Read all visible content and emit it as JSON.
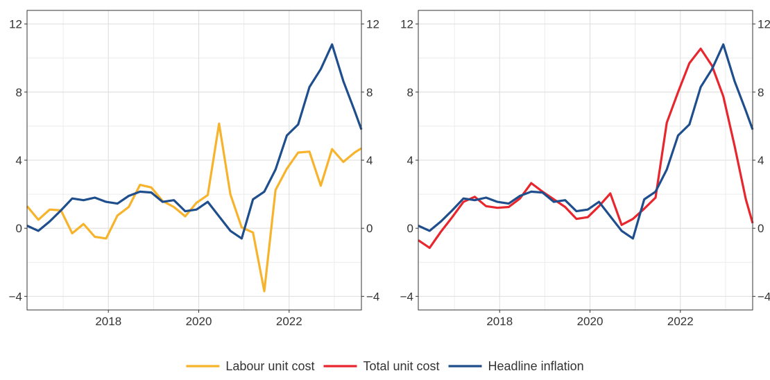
{
  "chart_data": [
    {
      "type": "line",
      "panel": "left",
      "xlim": [
        2016.2,
        2023.6
      ],
      "ylim": [
        -4.8,
        12.8
      ],
      "x_ticks": [
        2018,
        2020,
        2022
      ],
      "x_tick_labels": [
        "2018",
        "2020",
        "2022"
      ],
      "y_ticks": [
        -4,
        0,
        4,
        8,
        12
      ],
      "y_tick_labels": [
        "−4",
        "0",
        "4",
        "8",
        "12"
      ],
      "grid": true,
      "series": [
        {
          "name": "Labour unit cost",
          "color": "#F7B32B",
          "points": [
            [
              2016.2,
              1.3
            ],
            [
              2016.45,
              0.5
            ],
            [
              2016.7,
              1.1
            ],
            [
              2016.95,
              1.05
            ],
            [
              2017.2,
              -0.3
            ],
            [
              2017.45,
              0.25
            ],
            [
              2017.7,
              -0.5
            ],
            [
              2017.95,
              -0.6
            ],
            [
              2018.2,
              0.75
            ],
            [
              2018.45,
              1.25
            ],
            [
              2018.7,
              2.55
            ],
            [
              2018.95,
              2.4
            ],
            [
              2019.2,
              1.6
            ],
            [
              2019.45,
              1.25
            ],
            [
              2019.7,
              0.7
            ],
            [
              2019.95,
              1.5
            ],
            [
              2020.2,
              1.95
            ],
            [
              2020.45,
              6.15
            ],
            [
              2020.7,
              2.0
            ],
            [
              2020.95,
              0.05
            ],
            [
              2021.2,
              -0.25
            ],
            [
              2021.45,
              -3.7
            ],
            [
              2021.7,
              2.25
            ],
            [
              2021.95,
              3.5
            ],
            [
              2022.2,
              4.45
            ],
            [
              2022.45,
              4.5
            ],
            [
              2022.7,
              2.5
            ],
            [
              2022.95,
              4.65
            ],
            [
              2023.2,
              3.9
            ],
            [
              2023.45,
              4.45
            ],
            [
              2023.6,
              4.7
            ]
          ]
        },
        {
          "name": "Headline inflation",
          "color": "#1F4E8C",
          "points": [
            [
              2016.2,
              0.15
            ],
            [
              2016.45,
              -0.15
            ],
            [
              2016.7,
              0.4
            ],
            [
              2016.95,
              1.05
            ],
            [
              2017.2,
              1.75
            ],
            [
              2017.45,
              1.65
            ],
            [
              2017.7,
              1.8
            ],
            [
              2017.95,
              1.55
            ],
            [
              2018.2,
              1.45
            ],
            [
              2018.45,
              1.9
            ],
            [
              2018.7,
              2.15
            ],
            [
              2018.95,
              2.1
            ],
            [
              2019.2,
              1.55
            ],
            [
              2019.45,
              1.65
            ],
            [
              2019.7,
              1.0
            ],
            [
              2019.95,
              1.1
            ],
            [
              2020.2,
              1.55
            ],
            [
              2020.45,
              0.7
            ],
            [
              2020.7,
              -0.15
            ],
            [
              2020.95,
              -0.6
            ],
            [
              2021.2,
              1.7
            ],
            [
              2021.45,
              2.15
            ],
            [
              2021.7,
              3.45
            ],
            [
              2021.95,
              5.45
            ],
            [
              2022.2,
              6.1
            ],
            [
              2022.45,
              8.3
            ],
            [
              2022.7,
              9.35
            ],
            [
              2022.95,
              10.8
            ],
            [
              2023.2,
              8.65
            ],
            [
              2023.45,
              6.9
            ],
            [
              2023.6,
              5.8
            ]
          ]
        }
      ]
    },
    {
      "type": "line",
      "panel": "right",
      "xlim": [
        2016.2,
        2023.6
      ],
      "ylim": [
        -4.8,
        12.8
      ],
      "x_ticks": [
        2018,
        2020,
        2022
      ],
      "x_tick_labels": [
        "2018",
        "2020",
        "2022"
      ],
      "y_ticks": [
        -4,
        0,
        4,
        8,
        12
      ],
      "y_tick_labels": [
        "−4",
        "0",
        "4",
        "8",
        "12"
      ],
      "grid": true,
      "series": [
        {
          "name": "Total unit cost",
          "color": "#E8262E",
          "points": [
            [
              2016.2,
              -0.7
            ],
            [
              2016.45,
              -1.15
            ],
            [
              2016.7,
              -0.2
            ],
            [
              2016.95,
              0.65
            ],
            [
              2017.2,
              1.55
            ],
            [
              2017.45,
              1.85
            ],
            [
              2017.7,
              1.3
            ],
            [
              2017.95,
              1.2
            ],
            [
              2018.2,
              1.25
            ],
            [
              2018.45,
              1.75
            ],
            [
              2018.7,
              2.65
            ],
            [
              2018.95,
              2.15
            ],
            [
              2019.2,
              1.7
            ],
            [
              2019.45,
              1.25
            ],
            [
              2019.7,
              0.55
            ],
            [
              2019.95,
              0.65
            ],
            [
              2020.2,
              1.3
            ],
            [
              2020.45,
              2.05
            ],
            [
              2020.7,
              0.2
            ],
            [
              2020.95,
              0.55
            ],
            [
              2021.2,
              1.15
            ],
            [
              2021.45,
              1.8
            ],
            [
              2021.7,
              6.2
            ],
            [
              2021.95,
              8.0
            ],
            [
              2022.2,
              9.7
            ],
            [
              2022.45,
              10.55
            ],
            [
              2022.7,
              9.55
            ],
            [
              2022.95,
              7.75
            ],
            [
              2023.2,
              4.85
            ],
            [
              2023.45,
              1.7
            ],
            [
              2023.6,
              0.3
            ]
          ]
        },
        {
          "name": "Headline inflation",
          "color": "#1F4E8C",
          "points": [
            [
              2016.2,
              0.15
            ],
            [
              2016.45,
              -0.15
            ],
            [
              2016.7,
              0.4
            ],
            [
              2016.95,
              1.05
            ],
            [
              2017.2,
              1.75
            ],
            [
              2017.45,
              1.65
            ],
            [
              2017.7,
              1.8
            ],
            [
              2017.95,
              1.55
            ],
            [
              2018.2,
              1.45
            ],
            [
              2018.45,
              1.9
            ],
            [
              2018.7,
              2.15
            ],
            [
              2018.95,
              2.1
            ],
            [
              2019.2,
              1.55
            ],
            [
              2019.45,
              1.65
            ],
            [
              2019.7,
              1.0
            ],
            [
              2019.95,
              1.1
            ],
            [
              2020.2,
              1.55
            ],
            [
              2020.45,
              0.7
            ],
            [
              2020.7,
              -0.15
            ],
            [
              2020.95,
              -0.6
            ],
            [
              2021.2,
              1.7
            ],
            [
              2021.45,
              2.15
            ],
            [
              2021.7,
              3.45
            ],
            [
              2021.95,
              5.45
            ],
            [
              2022.2,
              6.1
            ],
            [
              2022.45,
              8.3
            ],
            [
              2022.7,
              9.35
            ],
            [
              2022.95,
              10.8
            ],
            [
              2023.2,
              8.65
            ],
            [
              2023.45,
              6.9
            ],
            [
              2023.6,
              5.8
            ]
          ]
        }
      ]
    }
  ],
  "legend": {
    "placement": "bottom-center",
    "items": [
      {
        "label": "Labour unit cost",
        "color": "#F7B32B"
      },
      {
        "label": "Total unit cost",
        "color": "#E8262E"
      },
      {
        "label": "Headline inflation",
        "color": "#1F4E8C"
      }
    ]
  }
}
